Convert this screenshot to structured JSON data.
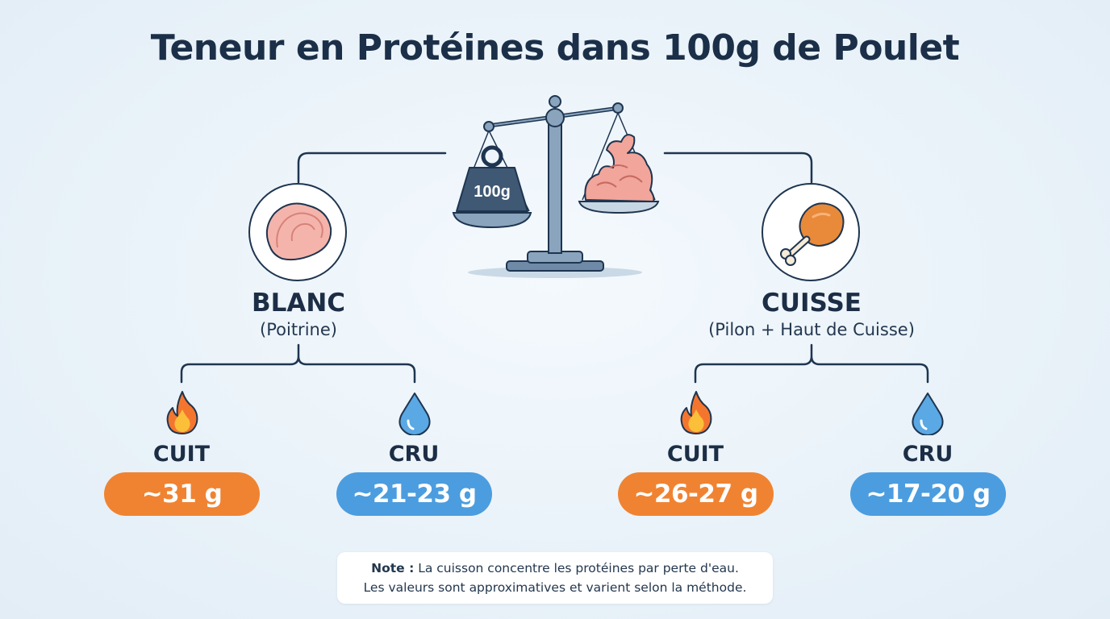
{
  "title": "Teneur en Protéines dans 100g de Poulet",
  "scale": {
    "weight_label": "100g"
  },
  "blanc": {
    "name": "BLANC",
    "subtitle": "(Poitrine)",
    "cuit": {
      "label": "CUIT",
      "value": "~31 g"
    },
    "cru": {
      "label": "CRU",
      "value": "~21-23 g"
    }
  },
  "cuisse": {
    "name": "CUISSE",
    "subtitle": "(Pilon + Haut de Cuisse)",
    "cuit": {
      "label": "CUIT",
      "value": "~26-27 g"
    },
    "cru": {
      "label": "CRU",
      "value": "~17-20 g"
    }
  },
  "note": {
    "prefix": "Note :",
    "line1": "La cuisson concentre les protéines par perte d'eau.",
    "line2": "Les valeurs sont approximatives et varient selon la méthode."
  },
  "colors": {
    "cooked": "#f08331",
    "raw": "#4b9ddf",
    "line": "#1e3550"
  },
  "icons": [
    "scale-icon",
    "weight-icon",
    "muscle-icon",
    "chicken-breast-icon",
    "drumstick-icon",
    "flame-icon",
    "water-drop-icon"
  ]
}
